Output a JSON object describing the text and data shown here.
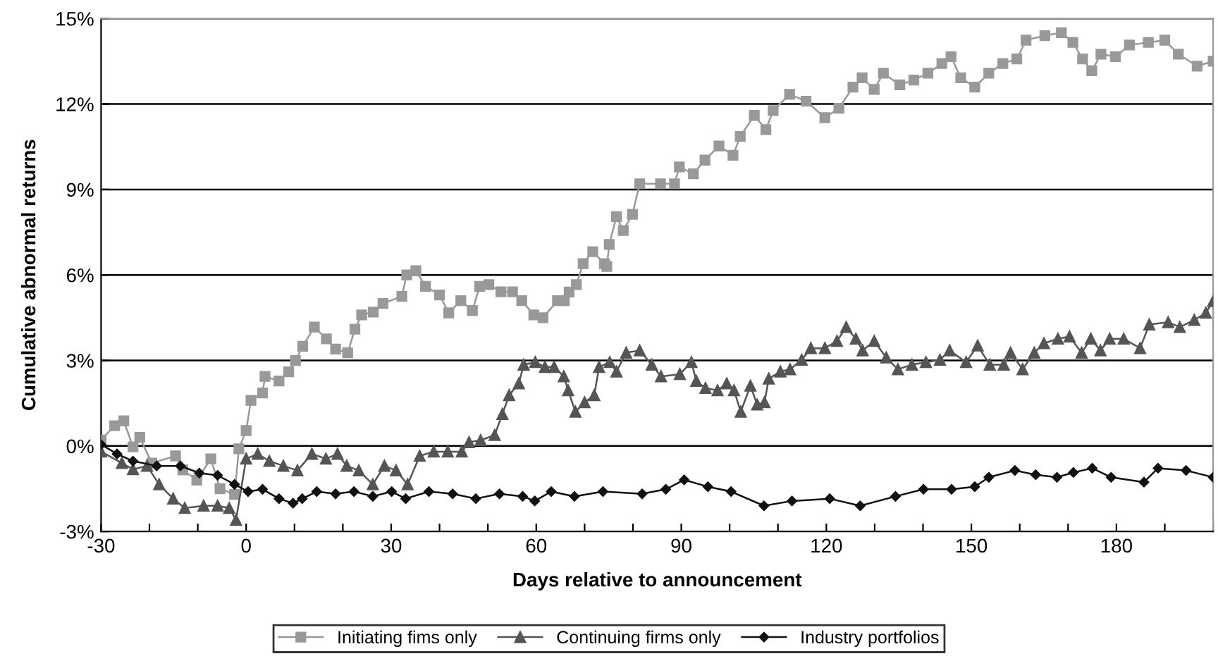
{
  "chart_data": {
    "type": "line",
    "xlabel": "Days relative to announcement",
    "ylabel": "Cumulative abnormal returns",
    "xlim": [
      -30,
      200
    ],
    "ylim": [
      -3,
      15
    ],
    "xticks": [
      -30,
      {
        "value": -20,
        "label": null
      },
      {
        "value": -10,
        "label": null
      },
      0,
      {
        "value": 10,
        "label": null
      },
      {
        "value": 20,
        "label": null
      },
      30,
      {
        "value": 40,
        "label": null
      },
      {
        "value": 50,
        "label": null
      },
      60,
      {
        "value": 70,
        "label": null
      },
      {
        "value": 80,
        "label": null
      },
      90,
      {
        "value": 100,
        "label": null
      },
      {
        "value": 110,
        "label": null
      },
      120,
      {
        "value": 130,
        "label": null
      },
      {
        "value": 140,
        "label": null
      },
      150,
      {
        "value": 160,
        "label": null
      },
      {
        "value": 170,
        "label": null
      },
      180,
      {
        "value": 190,
        "label": null
      },
      {
        "value": 200,
        "label": null
      }
    ],
    "yticks": [
      {
        "value": -3,
        "label": "-3%"
      },
      {
        "value": 0,
        "label": "0%"
      },
      {
        "value": 3,
        "label": "3%"
      },
      {
        "value": 6,
        "label": "6%"
      },
      {
        "value": 9,
        "label": "9%"
      },
      {
        "value": 12,
        "label": "12%"
      },
      {
        "value": 15,
        "label": "15%"
      }
    ],
    "grid": "y",
    "legend": "bottom",
    "series": [
      {
        "name": "Initiating fims only",
        "color": "#999999",
        "marker": "square",
        "x": [
          -30,
          -27.2,
          -25.3,
          -23.4,
          -22,
          -19.5,
          -14.6,
          -13.1,
          -10.2,
          -7.3,
          -5.4,
          -2.4,
          -1.5,
          0,
          1,
          3.4,
          3.9,
          6.8,
          8.8,
          10.2,
          11.7,
          14.1,
          16.6,
          18.5,
          21,
          22.5,
          23.9,
          26.3,
          28.3,
          32.2,
          33.2,
          35.1,
          37.1,
          40,
          41.9,
          44.4,
          46.8,
          48.3,
          50.2,
          52.7,
          55.1,
          57,
          59.5,
          61.4,
          64.4,
          65.8,
          66.8,
          68.3,
          69.7,
          71.7,
          74.1,
          74.6,
          75.1,
          76.6,
          78,
          79.9,
          81.4,
          85.7,
          88.6,
          89.6,
          92.5,
          94.9,
          97.8,
          100.7,
          102.2,
          105.1,
          107.5,
          109,
          112.4,
          115.8,
          119.7,
          122.6,
          125.5,
          127.4,
          129.9,
          131.8,
          135.2,
          138.1,
          141,
          143.9,
          145.8,
          147.8,
          150.7,
          153.6,
          156.5,
          159.4,
          161.3,
          165.2,
          168.6,
          171,
          173,
          174.9,
          176.8,
          179.8,
          182.7,
          186.6,
          190,
          192.8,
          196.7,
          200
        ],
        "values": [
          0.21,
          0.71,
          0.88,
          -0.03,
          0.3,
          -0.6,
          -0.35,
          -0.84,
          -1.2,
          -0.45,
          -1.5,
          -1.7,
          -0.1,
          0.54,
          1.6,
          1.86,
          2.44,
          2.28,
          2.6,
          3.0,
          3.5,
          4.17,
          3.76,
          3.4,
          3.27,
          4.1,
          4.6,
          4.7,
          5.0,
          5.25,
          6.0,
          6.15,
          5.6,
          5.3,
          4.67,
          5.1,
          4.75,
          5.6,
          5.66,
          5.41,
          5.41,
          5.1,
          4.6,
          4.5,
          5.1,
          5.1,
          5.4,
          5.66,
          6.4,
          6.82,
          6.4,
          6.3,
          7.07,
          8.05,
          7.56,
          8.13,
          9.2,
          9.2,
          9.2,
          9.79,
          9.55,
          10.03,
          10.53,
          10.2,
          10.86,
          11.6,
          11.1,
          11.77,
          12.34,
          12.1,
          11.52,
          11.85,
          12.59,
          12.92,
          12.51,
          13.08,
          12.67,
          12.84,
          13.08,
          13.42,
          13.66,
          12.92,
          12.59,
          13.08,
          13.42,
          13.58,
          14.24,
          14.4,
          14.5,
          14.16,
          13.58,
          13.17,
          13.75,
          13.66,
          14.07,
          14.16,
          14.24,
          13.75,
          13.33,
          13.5
        ]
      },
      {
        "name": "Continuing firms only",
        "color": "#555555",
        "marker": "triangle",
        "x": [
          -30,
          -25.7,
          -23.4,
          -20.5,
          -18,
          -15.1,
          -12.7,
          -8.8,
          -5.9,
          -3.5,
          -2.1,
          0,
          2.4,
          4.8,
          7.7,
          10.6,
          13.6,
          16.5,
          18.9,
          20.8,
          23.3,
          26.2,
          28.6,
          31,
          33.4,
          35.9,
          38.8,
          41.7,
          44.6,
          46.1,
          48.5,
          51.4,
          53,
          54.4,
          56.4,
          57.4,
          59.8,
          61.8,
          63.7,
          65.7,
          66.6,
          68.1,
          70,
          72,
          73,
          75.2,
          76.6,
          78.6,
          81.4,
          83.9,
          85.8,
          89.7,
          92.1,
          93.1,
          95,
          97.5,
          99.4,
          100.9,
          102.3,
          104.3,
          105.7,
          107.2,
          108.1,
          110.5,
          112.5,
          114.9,
          116.8,
          119.7,
          122.2,
          124.1,
          126.1,
          127.5,
          129.9,
          132.4,
          134.8,
          137.7,
          140.6,
          143.5,
          145.5,
          148.9,
          151.3,
          153.8,
          156.7,
          158.1,
          160.6,
          163,
          165,
          167.9,
          170.3,
          172.8,
          174.7,
          176.7,
          178.6,
          181.5,
          184.9,
          186.8,
          190.7,
          193.1,
          196.1,
          198.5,
          200
        ],
        "values": [
          -0.2,
          -0.6,
          -0.82,
          -0.7,
          -1.35,
          -1.85,
          -2.18,
          -2.1,
          -2.1,
          -2.18,
          -2.6,
          -0.45,
          -0.28,
          -0.53,
          -0.7,
          -0.86,
          -0.28,
          -0.45,
          -0.28,
          -0.7,
          -0.86,
          -1.35,
          -0.7,
          -0.86,
          -1.35,
          -0.35,
          -0.2,
          -0.2,
          -0.2,
          0.13,
          0.2,
          0.38,
          1.12,
          1.78,
          2.19,
          2.85,
          2.94,
          2.77,
          2.77,
          2.44,
          1.95,
          1.2,
          1.53,
          1.78,
          2.77,
          2.94,
          2.61,
          3.27,
          3.35,
          2.85,
          2.44,
          2.52,
          2.94,
          2.28,
          2.03,
          1.95,
          2.19,
          1.95,
          1.2,
          2.11,
          1.45,
          1.53,
          2.36,
          2.61,
          2.69,
          3.02,
          3.43,
          3.43,
          3.68,
          4.17,
          3.76,
          3.35,
          3.68,
          3.1,
          2.69,
          2.85,
          2.94,
          3.02,
          3.35,
          2.94,
          3.52,
          2.85,
          2.85,
          3.27,
          2.69,
          3.27,
          3.6,
          3.76,
          3.84,
          3.27,
          3.76,
          3.35,
          3.76,
          3.76,
          3.43,
          4.26,
          4.34,
          4.17,
          4.42,
          4.67,
          5.08
        ]
      },
      {
        "name": "Industry portfolios",
        "color": "#111111",
        "marker": "diamond",
        "x": [
          -30,
          -26.7,
          -23.4,
          -18.5,
          -13.6,
          -9.7,
          -5.9,
          -2.4,
          0.4,
          3.4,
          6.8,
          9.7,
          11.6,
          14.6,
          18.5,
          22.3,
          26.2,
          30.1,
          33,
          37.8,
          42.7,
          47.5,
          52.4,
          57.2,
          59.7,
          63.1,
          67.9,
          73.8,
          81.9,
          86.8,
          90.6,
          95.5,
          100.3,
          107.1,
          112.9,
          120.7,
          127,
          134.3,
          140.1,
          145.9,
          150.7,
          153.6,
          159,
          163.3,
          167.7,
          171.1,
          175,
          178.9,
          185.7,
          188.6,
          194.4,
          200
        ],
        "values": [
          0.05,
          -0.28,
          -0.53,
          -0.7,
          -0.7,
          -0.95,
          -1.03,
          -1.35,
          -1.6,
          -1.52,
          -1.85,
          -2.01,
          -1.85,
          -1.6,
          -1.68,
          -1.6,
          -1.77,
          -1.6,
          -1.85,
          -1.6,
          -1.68,
          -1.85,
          -1.68,
          -1.77,
          -1.93,
          -1.6,
          -1.77,
          -1.6,
          -1.68,
          -1.52,
          -1.19,
          -1.43,
          -1.6,
          -2.1,
          -1.93,
          -1.85,
          -2.1,
          -1.77,
          -1.52,
          -1.52,
          -1.43,
          -1.1,
          -0.86,
          -1.01,
          -1.1,
          -0.93,
          -0.78,
          -1.1,
          -1.27,
          -0.78,
          -0.86,
          -1.1
        ]
      }
    ]
  }
}
